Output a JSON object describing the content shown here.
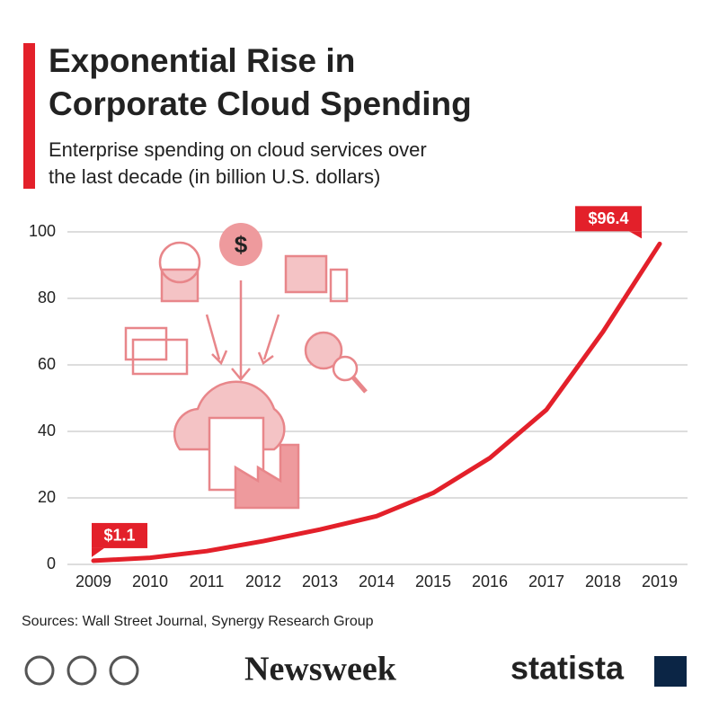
{
  "chart_data": {
    "type": "line",
    "title": [
      "Exponential Rise in",
      "Corporate Cloud Spending"
    ],
    "subtitle": [
      "Enterprise spending on cloud services over",
      "the last decade (in billion U.S. dollars)"
    ],
    "categories": [
      "2009",
      "2010",
      "2011",
      "2012",
      "2013",
      "2014",
      "2015",
      "2016",
      "2017",
      "2018",
      "2019"
    ],
    "values": [
      1.1,
      2.0,
      4.0,
      7.0,
      10.5,
      14.5,
      21.5,
      32,
      46.5,
      70,
      96.4
    ],
    "value_labels": [
      "$1.1",
      null,
      null,
      null,
      null,
      null,
      null,
      null,
      null,
      null,
      "$96.4"
    ],
    "color": "#e3202a",
    "ylim": [
      0,
      100
    ],
    "yticks": [
      0,
      20,
      40,
      60,
      80,
      100
    ],
    "grid": true,
    "source": "Sources: Wall Street Journal, Synergy Research Group",
    "brands": [
      "Newsweek",
      "statista"
    ]
  }
}
